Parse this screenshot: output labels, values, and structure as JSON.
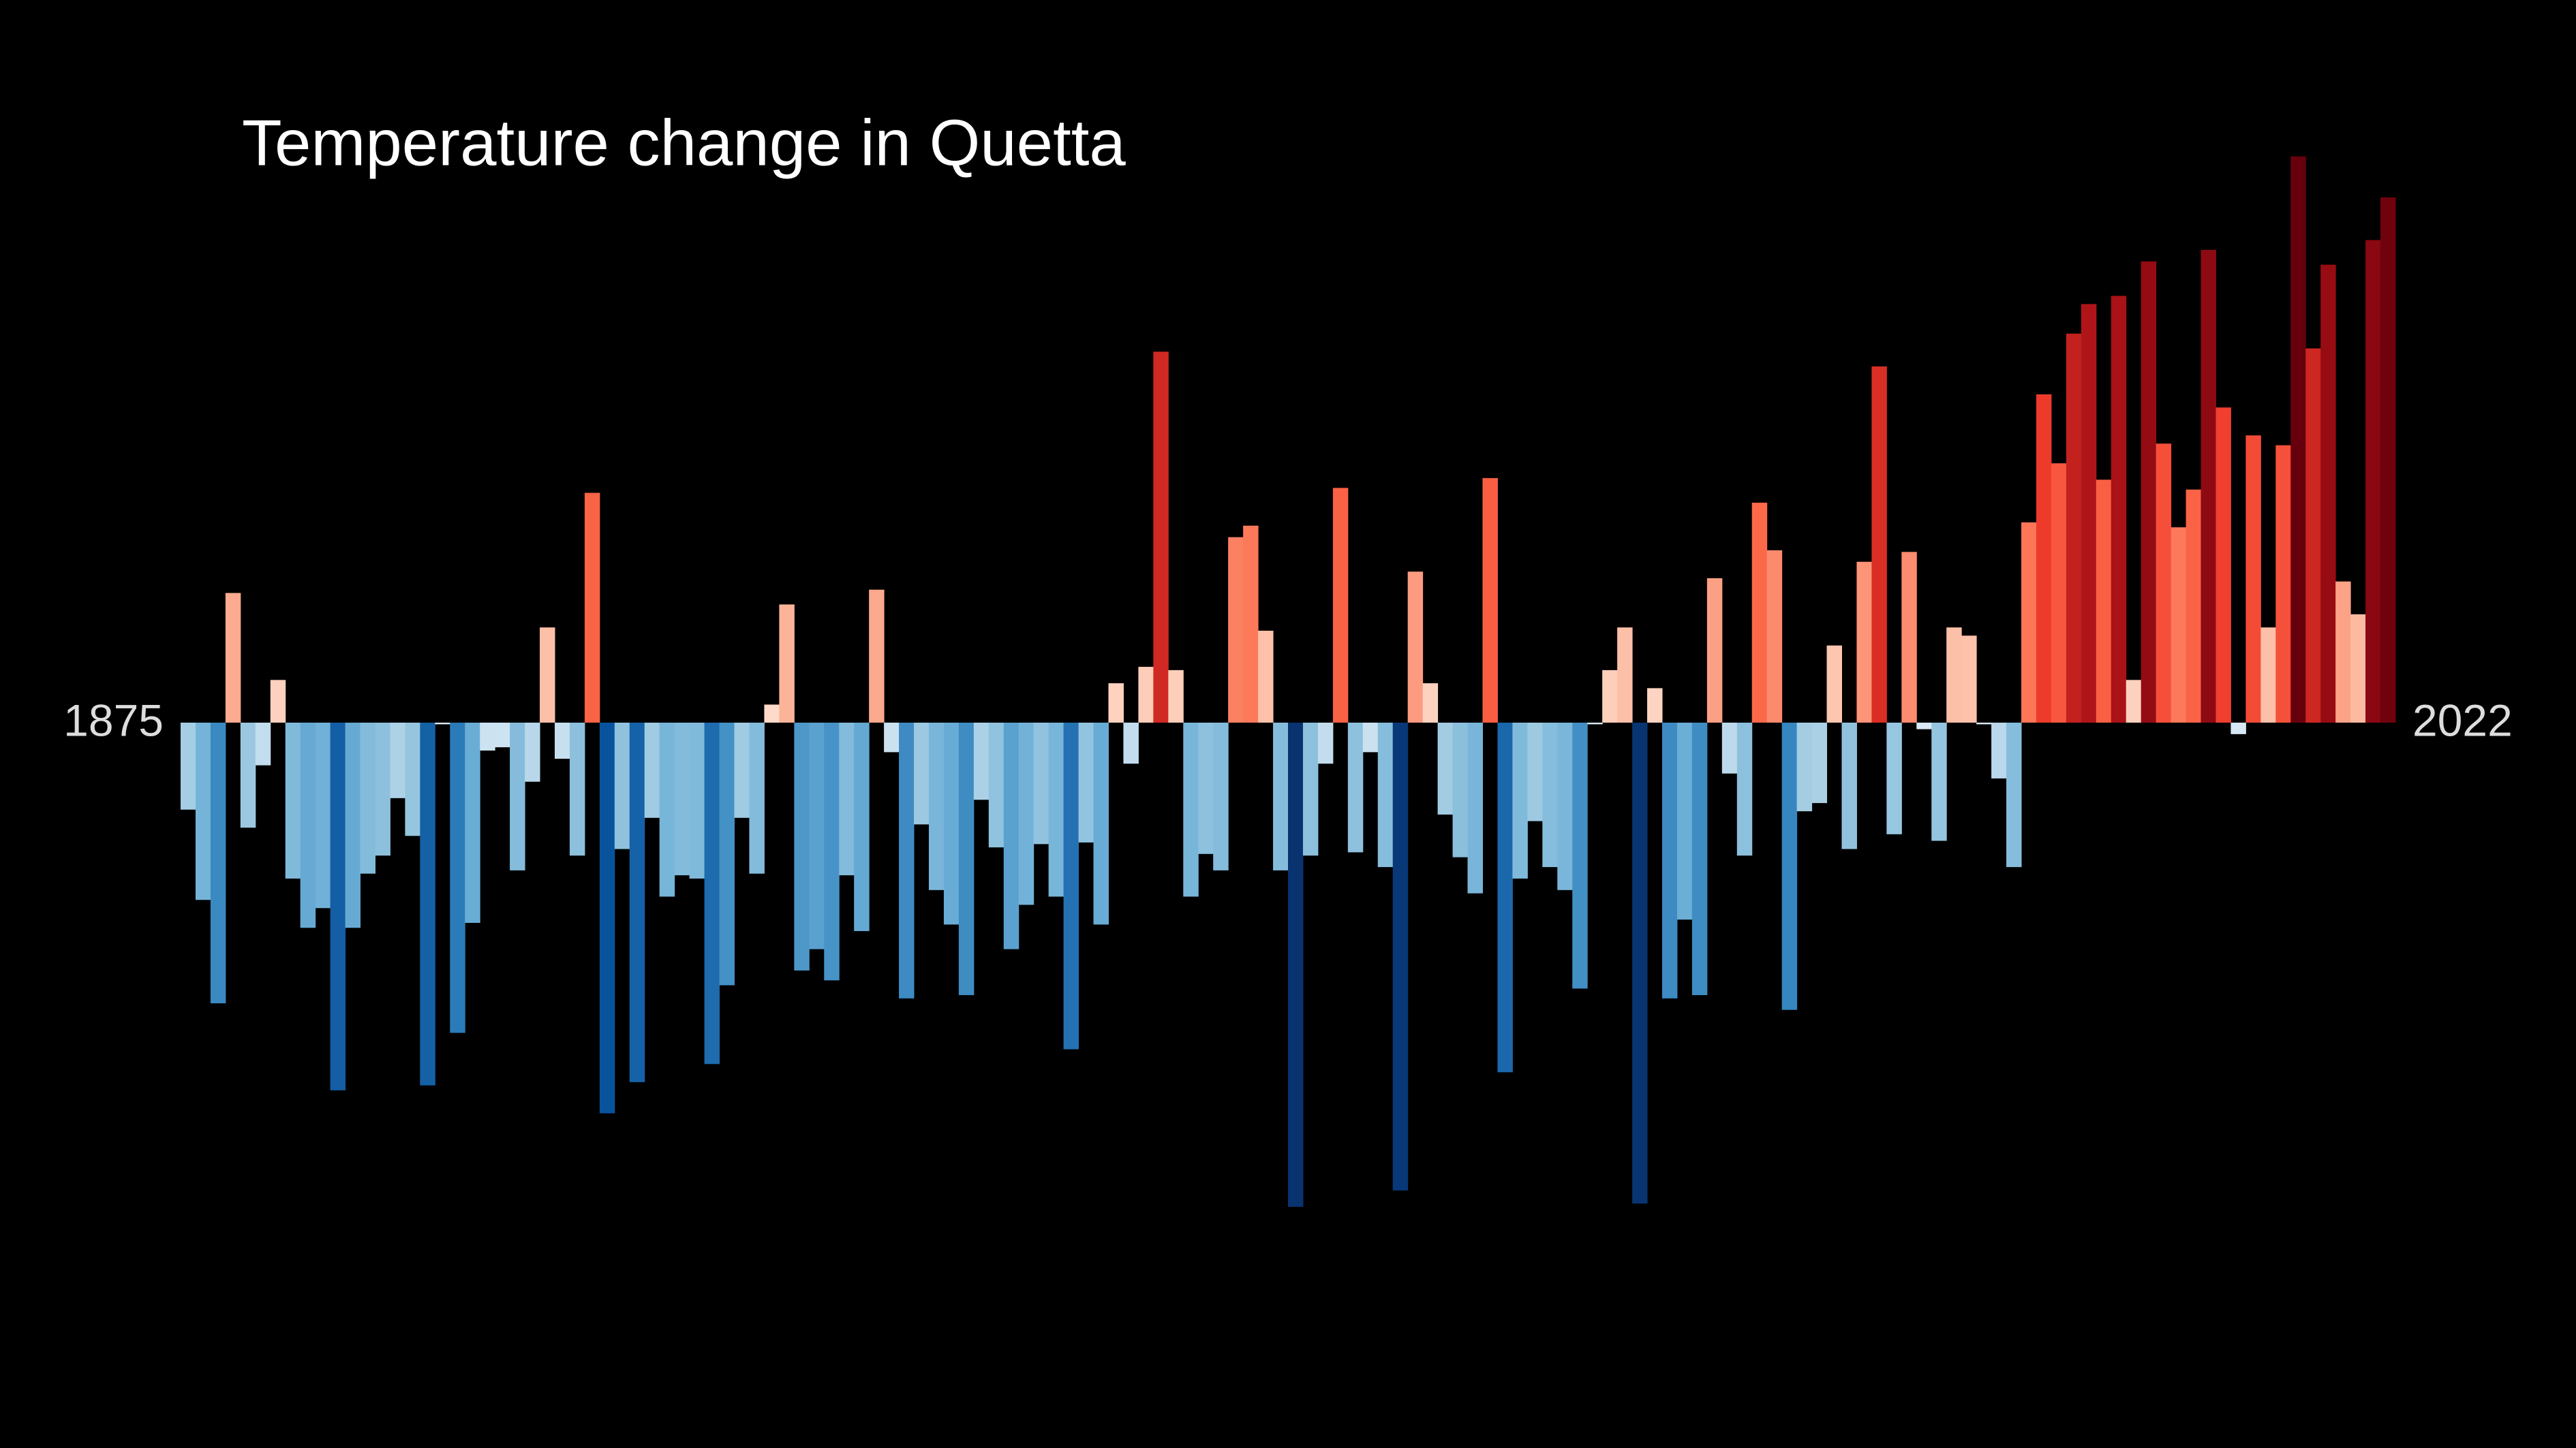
{
  "chart_data": {
    "type": "bar",
    "title": "Temperature change in Quetta",
    "colormap": "RdBu_r",
    "xlim": [
      1874.5,
      2022.5
    ],
    "xticks": [
      1875,
      2022
    ],
    "x": [
      1875,
      1876,
      1877,
      1878,
      1879,
      1880,
      1881,
      1882,
      1883,
      1884,
      1885,
      1886,
      1887,
      1888,
      1889,
      1890,
      1891,
      1892,
      1893,
      1894,
      1895,
      1896,
      1897,
      1898,
      1899,
      1900,
      1901,
      1902,
      1903,
      1904,
      1905,
      1906,
      1907,
      1908,
      1909,
      1910,
      1911,
      1912,
      1913,
      1914,
      1915,
      1916,
      1917,
      1918,
      1919,
      1920,
      1921,
      1922,
      1923,
      1924,
      1925,
      1926,
      1927,
      1928,
      1929,
      1930,
      1931,
      1932,
      1933,
      1934,
      1935,
      1936,
      1937,
      1938,
      1939,
      1940,
      1941,
      1942,
      1943,
      1944,
      1945,
      1946,
      1947,
      1948,
      1949,
      1950,
      1951,
      1952,
      1953,
      1954,
      1955,
      1956,
      1957,
      1958,
      1959,
      1960,
      1961,
      1962,
      1963,
      1964,
      1965,
      1966,
      1967,
      1968,
      1969,
      1970,
      1971,
      1972,
      1973,
      1974,
      1975,
      1976,
      1977,
      1978,
      1979,
      1980,
      1981,
      1982,
      1983,
      1984,
      1985,
      1986,
      1987,
      1988,
      1989,
      1990,
      1991,
      1992,
      1993,
      1994,
      1995,
      1996,
      1997,
      1998,
      1999,
      2000,
      2001,
      2002,
      2003,
      2004,
      2005,
      2006,
      2007,
      2008,
      2009,
      2010,
      2011,
      2012,
      2013,
      2014,
      2015,
      2016,
      2017,
      2018,
      2019,
      2020,
      2021,
      2022
    ],
    "values": [
      -0.53,
      -1.08,
      -1.71,
      0.79,
      -0.64,
      -0.26,
      0.26,
      -0.95,
      -1.25,
      -1.13,
      -2.24,
      -1.25,
      -0.92,
      -0.81,
      -0.46,
      -0.69,
      -2.21,
      -0.01,
      -1.89,
      -1.22,
      -0.17,
      -0.15,
      -0.9,
      -0.36,
      0.58,
      -0.22,
      -0.81,
      1.4,
      -2.38,
      -0.77,
      -2.19,
      -0.58,
      -1.06,
      -0.93,
      -0.95,
      -2.08,
      -1.6,
      -0.58,
      -0.92,
      0.11,
      0.72,
      -1.51,
      -1.38,
      -1.57,
      -0.93,
      -1.27,
      0.81,
      -0.18,
      -1.68,
      -0.62,
      -1.02,
      -1.23,
      -1.66,
      -0.47,
      -0.76,
      -1.38,
      -1.11,
      -0.74,
      -1.06,
      -1.99,
      -0.73,
      -1.23,
      0.24,
      -0.25,
      0.34,
      2.26,
      0.32,
      -1.06,
      -0.8,
      -0.9,
      1.13,
      1.2,
      0.56,
      -0.9,
      -2.95,
      -0.81,
      -0.25,
      1.43,
      -0.79,
      -0.18,
      -0.88,
      -2.85,
      0.92,
      0.24,
      -0.56,
      -0.82,
      -1.04,
      1.49,
      -2.13,
      -0.95,
      -0.6,
      -0.88,
      -1.02,
      -1.62,
      -0.01,
      0.32,
      0.58,
      -2.93,
      0.21,
      -1.68,
      -1.2,
      -1.66,
      0.88,
      -0.31,
      -0.81,
      1.34,
      1.05,
      -1.75,
      -0.54,
      -0.49,
      0.47,
      -0.77,
      0.98,
      2.17,
      -0.68,
      1.04,
      -0.04,
      -0.72,
      0.58,
      0.53,
      -0.01,
      -0.34,
      -0.88,
      1.22,
      2.0,
      1.58,
      2.37,
      2.55,
      1.48,
      2.6,
      0.26,
      2.81,
      1.7,
      1.19,
      1.42,
      2.88,
      1.92,
      -0.07,
      1.75,
      0.58,
      1.69,
      3.45,
      2.28,
      2.79,
      0.86,
      0.66,
      2.94,
      3.2
    ]
  }
}
